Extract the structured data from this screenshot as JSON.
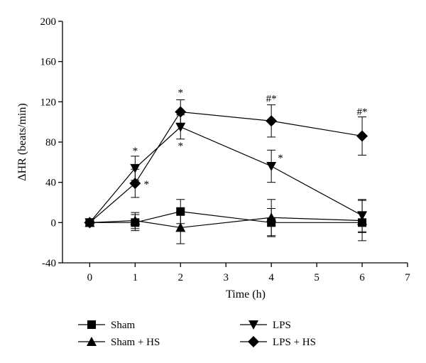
{
  "chart_data": {
    "type": "line",
    "xlabel": "Time (h)",
    "ylabel": "ΔHR (beats/min)",
    "xlim": [
      -0.6,
      7
    ],
    "ylim": [
      -40,
      200
    ],
    "x_ticks": [
      0,
      1,
      2,
      3,
      4,
      5,
      6,
      7
    ],
    "y_ticks": [
      -40,
      0,
      40,
      80,
      120,
      160,
      200
    ],
    "grid": false,
    "legend_position": "bottom",
    "series": [
      {
        "name": "Sham",
        "marker": "square",
        "x": [
          0,
          1,
          2,
          4,
          6
        ],
        "y": [
          0,
          0,
          11,
          0,
          0
        ],
        "error": [
          0,
          8,
          12,
          14,
          10
        ]
      },
      {
        "name": "Sham + HS",
        "marker": "triangle-up",
        "x": [
          0,
          1,
          2,
          4,
          6
        ],
        "y": [
          0,
          2,
          -5,
          5,
          2
        ],
        "error": [
          0,
          8,
          16,
          18,
          20
        ]
      },
      {
        "name": "LPS",
        "marker": "triangle-down",
        "x": [
          0,
          1,
          2,
          4,
          6
        ],
        "y": [
          0,
          54,
          95,
          56,
          7
        ],
        "error": [
          0,
          12,
          12,
          16,
          16
        ]
      },
      {
        "name": "LPS + HS",
        "marker": "diamond",
        "x": [
          0,
          1,
          2,
          4,
          6
        ],
        "y": [
          0,
          39,
          110,
          101,
          86
        ],
        "error": [
          0,
          14,
          12,
          16,
          19
        ]
      }
    ],
    "annotations": [
      {
        "text": "*",
        "x": 1,
        "y": 68
      },
      {
        "text": "*",
        "x": 1.25,
        "y": 35
      },
      {
        "text": "*",
        "x": 2,
        "y": 126
      },
      {
        "text": "*",
        "x": 2,
        "y": 73
      },
      {
        "text": "*",
        "x": 4.2,
        "y": 61
      },
      {
        "text": "#*",
        "x": 4,
        "y": 120
      },
      {
        "text": "#*",
        "x": 6,
        "y": 107
      }
    ]
  }
}
